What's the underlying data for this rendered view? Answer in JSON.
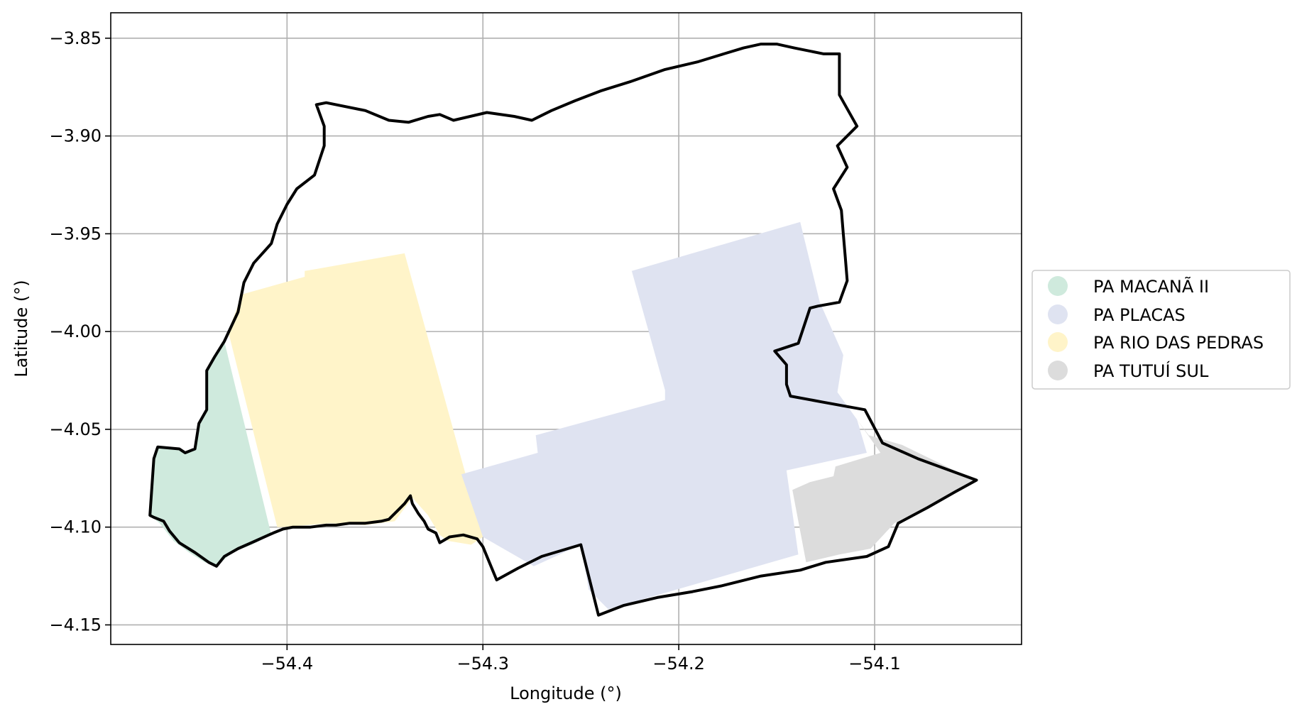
{
  "axes": {
    "xlabel": "Longitude (°)",
    "ylabel": "Latitude (°)",
    "xlim": [
      -54.49,
      -54.025
    ],
    "ylim": [
      -4.16,
      -3.837
    ],
    "xticks": [
      {
        "value": -54.4,
        "label": "−54.4"
      },
      {
        "value": -54.3,
        "label": "−54.3"
      },
      {
        "value": -54.2,
        "label": "−54.2"
      },
      {
        "value": -54.1,
        "label": "−54.1"
      }
    ],
    "yticks": [
      {
        "value": -3.85,
        "label": "−3.85"
      },
      {
        "value": -3.9,
        "label": "−3.90"
      },
      {
        "value": -3.95,
        "label": "−3.95"
      },
      {
        "value": -4.0,
        "label": "−4.00"
      },
      {
        "value": -4.05,
        "label": "−4.05"
      },
      {
        "value": -4.1,
        "label": "−4.10"
      },
      {
        "value": -4.15,
        "label": "−4.15"
      }
    ],
    "grid": true
  },
  "legend": {
    "placement": "center-right, outside plot",
    "entries": [
      {
        "label": "PA MACANÃ II",
        "color": "#cfeadd"
      },
      {
        "label": "PA PLACAS",
        "color": "#dfe3f1"
      },
      {
        "label": "PA RIO DAS PEDRAS",
        "color": "#fff4c9"
      },
      {
        "label": "PA TUTUÍ SUL",
        "color": "#dcdcdc"
      }
    ]
  },
  "regions": [
    {
      "name": "PA MACANÃ II",
      "color": "#cfeadd",
      "coords": [
        [
          -54.432,
          -4.005
        ],
        [
          -54.437,
          -4.013
        ],
        [
          -54.441,
          -4.02
        ],
        [
          -54.441,
          -4.04
        ],
        [
          -54.445,
          -4.047
        ],
        [
          -54.447,
          -4.06
        ],
        [
          -54.452,
          -4.062
        ],
        [
          -54.455,
          -4.06
        ],
        [
          -54.466,
          -4.059
        ],
        [
          -54.468,
          -4.065
        ],
        [
          -54.47,
          -4.094
        ],
        [
          -54.465,
          -4.098
        ],
        [
          -54.458,
          -4.107
        ],
        [
          -54.45,
          -4.113
        ],
        [
          -54.442,
          -4.118
        ],
        [
          -54.436,
          -4.12
        ],
        [
          -54.428,
          -4.113
        ],
        [
          -54.418,
          -4.109
        ],
        [
          -54.408,
          -4.104
        ]
      ]
    },
    {
      "name": "PA RIO DAS PEDRAS",
      "color": "#fff4c9",
      "coords": [
        [
          -54.423,
          -3.981
        ],
        [
          -54.391,
          -3.972
        ],
        [
          -54.391,
          -3.969
        ],
        [
          -54.385,
          -3.968
        ],
        [
          -54.34,
          -3.96
        ],
        [
          -54.3,
          -4.105
        ],
        [
          -54.306,
          -4.109
        ],
        [
          -54.318,
          -4.107
        ],
        [
          -54.322,
          -4.104
        ],
        [
          -54.328,
          -4.094
        ],
        [
          -54.336,
          -4.085
        ],
        [
          -54.345,
          -4.097
        ],
        [
          -54.36,
          -4.099
        ],
        [
          -54.378,
          -4.098
        ],
        [
          -54.403,
          -4.1
        ],
        [
          -54.405,
          -4.1
        ],
        [
          -54.43,
          -4.0
        ]
      ]
    },
    {
      "name": "PA PLACAS",
      "color": "#dfe3f1",
      "coords": [
        [
          -54.224,
          -3.969
        ],
        [
          -54.138,
          -3.944
        ],
        [
          -54.128,
          -3.985
        ],
        [
          -54.116,
          -4.012
        ],
        [
          -54.119,
          -4.031
        ],
        [
          -54.109,
          -4.045
        ],
        [
          -54.104,
          -4.062
        ],
        [
          -54.145,
          -4.071
        ],
        [
          -54.139,
          -4.114
        ],
        [
          -54.236,
          -4.142
        ],
        [
          -54.246,
          -4.132
        ],
        [
          -54.25,
          -4.109
        ],
        [
          -54.274,
          -4.12
        ],
        [
          -54.3,
          -4.105
        ],
        [
          -54.311,
          -4.073
        ],
        [
          -54.272,
          -4.062
        ],
        [
          -54.273,
          -4.053
        ],
        [
          -54.207,
          -4.035
        ],
        [
          -54.207,
          -4.03
        ]
      ]
    },
    {
      "name": "PA TUTUÍ SUL",
      "color": "#dcdcdc",
      "coords": [
        [
          -54.109,
          -4.045
        ],
        [
          -54.097,
          -4.062
        ],
        [
          -54.12,
          -4.069
        ],
        [
          -54.121,
          -4.074
        ],
        [
          -54.133,
          -4.077
        ],
        [
          -54.142,
          -4.081
        ],
        [
          -54.135,
          -4.118
        ],
        [
          -54.118,
          -4.114
        ],
        [
          -54.102,
          -4.111
        ],
        [
          -54.09,
          -4.098
        ],
        [
          -54.074,
          -4.09
        ],
        [
          -54.06,
          -4.082
        ],
        [
          -54.049,
          -4.076
        ],
        [
          -54.086,
          -4.058
        ],
        [
          -54.103,
          -4.053
        ]
      ]
    }
  ],
  "boundary": {
    "color": "#000000",
    "coords": [
      [
        -54.47,
        -4.094
      ],
      [
        -54.468,
        -4.065
      ],
      [
        -54.466,
        -4.059
      ],
      [
        -54.455,
        -4.06
      ],
      [
        -54.452,
        -4.062
      ],
      [
        -54.447,
        -4.06
      ],
      [
        -54.445,
        -4.047
      ],
      [
        -54.441,
        -4.04
      ],
      [
        -54.441,
        -4.02
      ],
      [
        -54.437,
        -4.013
      ],
      [
        -54.432,
        -4.005
      ],
      [
        -54.425,
        -3.99
      ],
      [
        -54.422,
        -3.975
      ],
      [
        -54.417,
        -3.965
      ],
      [
        -54.408,
        -3.955
      ],
      [
        -54.405,
        -3.945
      ],
      [
        -54.4,
        -3.935
      ],
      [
        -54.395,
        -3.927
      ],
      [
        -54.386,
        -3.92
      ],
      [
        -54.381,
        -3.905
      ],
      [
        -54.381,
        -3.895
      ],
      [
        -54.385,
        -3.884
      ],
      [
        -54.38,
        -3.883
      ],
      [
        -54.36,
        -3.887
      ],
      [
        -54.348,
        -3.892
      ],
      [
        -54.338,
        -3.893
      ],
      [
        -54.328,
        -3.89
      ],
      [
        -54.322,
        -3.889
      ],
      [
        -54.315,
        -3.892
      ],
      [
        -54.298,
        -3.888
      ],
      [
        -54.284,
        -3.89
      ],
      [
        -54.275,
        -3.892
      ],
      [
        -54.265,
        -3.887
      ],
      [
        -54.253,
        -3.882
      ],
      [
        -54.24,
        -3.877
      ],
      [
        -54.224,
        -3.872
      ],
      [
        -54.207,
        -3.866
      ],
      [
        -54.19,
        -3.862
      ],
      [
        -54.177,
        -3.858
      ],
      [
        -54.167,
        -3.855
      ],
      [
        -54.158,
        -3.853
      ],
      [
        -54.15,
        -3.853
      ],
      [
        -54.141,
        -3.855
      ],
      [
        -54.126,
        -3.858
      ],
      [
        -54.118,
        -3.858
      ],
      [
        -54.118,
        -3.879
      ],
      [
        -54.109,
        -3.895
      ],
      [
        -54.119,
        -3.905
      ],
      [
        -54.114,
        -3.916
      ],
      [
        -54.121,
        -3.927
      ],
      [
        -54.117,
        -3.938
      ],
      [
        -54.116,
        -3.95
      ],
      [
        -54.115,
        -3.962
      ],
      [
        -54.114,
        -3.974
      ],
      [
        -54.118,
        -3.985
      ],
      [
        -54.129,
        -3.987
      ],
      [
        -54.133,
        -3.988
      ],
      [
        -54.139,
        -4.006
      ],
      [
        -54.151,
        -4.01
      ],
      [
        -54.145,
        -4.017
      ],
      [
        -54.145,
        -4.027
      ],
      [
        -54.143,
        -4.033
      ],
      [
        -54.127,
        -4.036
      ],
      [
        -54.105,
        -4.04
      ],
      [
        -54.096,
        -4.057
      ],
      [
        -54.078,
        -4.065
      ],
      [
        -54.048,
        -4.076
      ],
      [
        -54.059,
        -4.082
      ],
      [
        -54.073,
        -4.09
      ],
      [
        -54.088,
        -4.098
      ],
      [
        -54.093,
        -4.11
      ],
      [
        -54.104,
        -4.115
      ],
      [
        -54.125,
        -4.118
      ],
      [
        -54.138,
        -4.122
      ],
      [
        -54.158,
        -4.125
      ],
      [
        -54.178,
        -4.13
      ],
      [
        -54.193,
        -4.133
      ],
      [
        -54.211,
        -4.136
      ],
      [
        -54.228,
        -4.14
      ],
      [
        -54.241,
        -4.145
      ],
      [
        -54.25,
        -4.109
      ],
      [
        -54.27,
        -4.115
      ],
      [
        -54.282,
        -4.121
      ],
      [
        -54.293,
        -4.127
      ],
      [
        -54.3,
        -4.11
      ],
      [
        -54.303,
        -4.106
      ],
      [
        -54.31,
        -4.104
      ],
      [
        -54.317,
        -4.105
      ],
      [
        -54.322,
        -4.108
      ],
      [
        -54.324,
        -4.103
      ],
      [
        -54.328,
        -4.101
      ],
      [
        -54.33,
        -4.097
      ],
      [
        -54.333,
        -4.093
      ],
      [
        -54.336,
        -4.088
      ],
      [
        -54.337,
        -4.084
      ],
      [
        -54.34,
        -4.088
      ],
      [
        -54.343,
        -4.091
      ],
      [
        -54.348,
        -4.096
      ],
      [
        -54.352,
        -4.097
      ],
      [
        -54.36,
        -4.098
      ],
      [
        -54.368,
        -4.098
      ],
      [
        -54.375,
        -4.099
      ],
      [
        -54.38,
        -4.099
      ],
      [
        -54.388,
        -4.1
      ],
      [
        -54.397,
        -4.1
      ],
      [
        -54.402,
        -4.101
      ],
      [
        -54.407,
        -4.103
      ],
      [
        -54.416,
        -4.107
      ],
      [
        -54.425,
        -4.111
      ],
      [
        -54.432,
        -4.115
      ],
      [
        -54.436,
        -4.12
      ],
      [
        -54.44,
        -4.118
      ],
      [
        -54.447,
        -4.113
      ],
      [
        -54.455,
        -4.108
      ],
      [
        -54.46,
        -4.102
      ],
      [
        -54.463,
        -4.097
      ],
      [
        -54.468,
        -4.095
      ]
    ]
  }
}
